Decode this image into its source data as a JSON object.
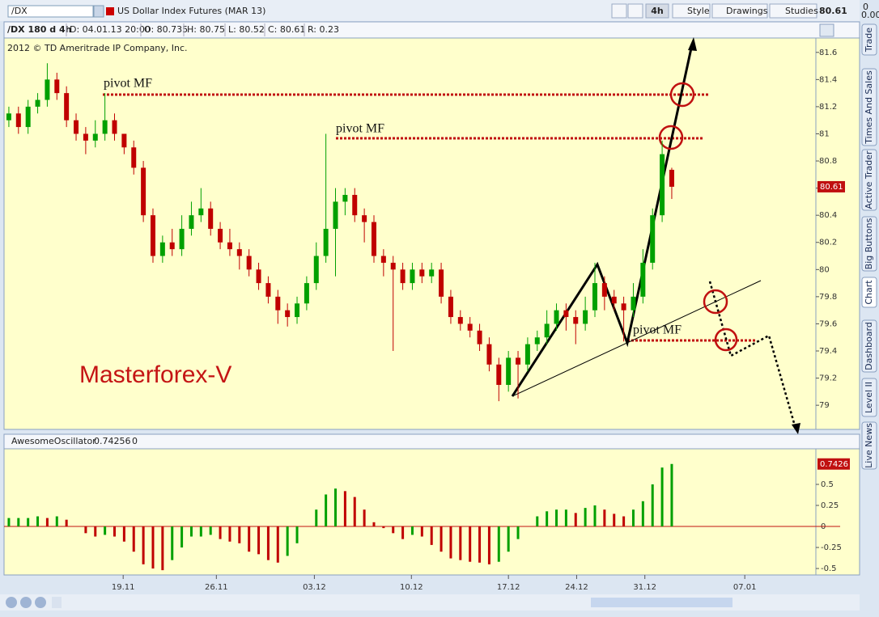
{
  "toolbar": {
    "symbol": "/DX",
    "description": "US Dollar Index Futures (MAR 13)",
    "timeframe": "4h",
    "buttons": [
      "Style",
      "Drawings",
      "Studies"
    ],
    "last": "80.61",
    "change": "0",
    "change_pct": "0.00%"
  },
  "info_bar": [
    "/DX 180 d 4h",
    "D: 04.01.13 20:00",
    "O: 80.735",
    "H: 80.75",
    "L: 80.52",
    "C: 80.61",
    "R: 0.23"
  ],
  "copyright": "2012 © TD Ameritrade IP Company, Inc.",
  "side_tabs": [
    "Trade",
    "Times And Sales",
    "Active Trader",
    "Big Buttons",
    "Chart",
    "Dashboard",
    "Level II",
    "Live News"
  ],
  "chart_data": [
    {
      "type": "candlestick",
      "watermark": "Masterforex-V",
      "annotations": [
        "pivot MF",
        "pivot MF",
        "pivot MF"
      ],
      "last_price_label": "80.61",
      "up_color": "#00a000",
      "down_color": "#c00000",
      "candles": [
        [
          81.1,
          81.2,
          81.05,
          81.15
        ],
        [
          81.15,
          81.2,
          81.0,
          81.05
        ],
        [
          81.05,
          81.25,
          81.0,
          81.2
        ],
        [
          81.2,
          81.3,
          81.15,
          81.25
        ],
        [
          81.25,
          81.52,
          81.2,
          81.4
        ],
        [
          81.4,
          81.45,
          81.25,
          81.3
        ],
        [
          81.3,
          81.35,
          81.05,
          81.1
        ],
        [
          81.1,
          81.15,
          80.95,
          81.0
        ],
        [
          81.0,
          81.05,
          80.85,
          80.95
        ],
        [
          80.95,
          81.1,
          80.9,
          81.0
        ],
        [
          81.0,
          81.3,
          80.95,
          81.1
        ],
        [
          81.1,
          81.15,
          80.95,
          81.0
        ],
        [
          81.0,
          81.0,
          80.85,
          80.9
        ],
        [
          80.9,
          80.95,
          80.7,
          80.75
        ],
        [
          80.75,
          80.8,
          80.35,
          80.4
        ],
        [
          80.4,
          80.45,
          80.05,
          80.1
        ],
        [
          80.1,
          80.25,
          80.05,
          80.2
        ],
        [
          80.2,
          80.3,
          80.1,
          80.15
        ],
        [
          80.15,
          80.4,
          80.1,
          80.3
        ],
        [
          80.3,
          80.5,
          80.25,
          80.4
        ],
        [
          80.4,
          80.6,
          80.35,
          80.45
        ],
        [
          80.45,
          80.5,
          80.25,
          80.3
        ],
        [
          80.3,
          80.35,
          80.15,
          80.2
        ],
        [
          80.2,
          80.3,
          80.1,
          80.15
        ],
        [
          80.15,
          80.2,
          80.0,
          80.1
        ],
        [
          80.1,
          80.15,
          79.95,
          80.0
        ],
        [
          80.0,
          80.05,
          79.85,
          79.9
        ],
        [
          79.9,
          79.95,
          79.75,
          79.8
        ],
        [
          79.8,
          79.85,
          79.6,
          79.7
        ],
        [
          79.7,
          79.75,
          79.58,
          79.65
        ],
        [
          79.65,
          79.8,
          79.6,
          79.75
        ],
        [
          79.75,
          79.95,
          79.7,
          79.9
        ],
        [
          79.9,
          80.2,
          79.85,
          80.1
        ],
        [
          80.1,
          81.0,
          80.05,
          80.3
        ],
        [
          80.3,
          80.6,
          79.95,
          80.5
        ],
        [
          80.5,
          80.6,
          80.4,
          80.55
        ],
        [
          80.55,
          80.6,
          80.35,
          80.4
        ],
        [
          80.4,
          80.45,
          80.2,
          80.35
        ],
        [
          80.35,
          80.4,
          80.05,
          80.1
        ],
        [
          80.1,
          80.15,
          79.95,
          80.05
        ],
        [
          80.05,
          80.1,
          79.4,
          80.0
        ],
        [
          80.0,
          80.05,
          79.85,
          79.9
        ],
        [
          79.9,
          80.05,
          79.85,
          80.0
        ],
        [
          80.0,
          80.05,
          79.9,
          79.95
        ],
        [
          79.95,
          80.05,
          79.9,
          80.0
        ],
        [
          80.0,
          80.05,
          79.75,
          79.8
        ],
        [
          79.8,
          79.85,
          79.6,
          79.65
        ],
        [
          79.65,
          79.7,
          79.55,
          79.6
        ],
        [
          79.6,
          79.65,
          79.5,
          79.55
        ],
        [
          79.55,
          79.6,
          79.4,
          79.45
        ],
        [
          79.45,
          79.5,
          79.25,
          79.3
        ],
        [
          79.3,
          79.35,
          79.03,
          79.15
        ],
        [
          79.15,
          79.4,
          79.1,
          79.35
        ],
        [
          79.35,
          79.4,
          79.05,
          79.3
        ],
        [
          79.3,
          79.5,
          79.25,
          79.45
        ],
        [
          79.45,
          79.55,
          79.4,
          79.5
        ],
        [
          79.5,
          79.7,
          79.45,
          79.6
        ],
        [
          79.6,
          79.75,
          79.55,
          79.7
        ],
        [
          79.7,
          79.75,
          79.55,
          79.65
        ],
        [
          79.65,
          79.7,
          79.45,
          79.6
        ],
        [
          79.6,
          79.8,
          79.55,
          79.7
        ],
        [
          79.7,
          80.05,
          79.65,
          79.9
        ],
        [
          79.9,
          79.95,
          79.7,
          79.8
        ],
        [
          79.8,
          79.85,
          79.7,
          79.75
        ],
        [
          79.75,
          79.8,
          79.47,
          79.7
        ],
        [
          79.7,
          79.9,
          79.65,
          79.8
        ],
        [
          79.8,
          80.15,
          79.75,
          80.05
        ],
        [
          80.05,
          80.45,
          80.0,
          80.4
        ],
        [
          80.4,
          80.95,
          80.35,
          80.85
        ],
        [
          80.735,
          80.75,
          80.52,
          80.61
        ]
      ],
      "xlim": [
        -0.5,
        84
      ],
      "xticks": [
        {
          "value": 11.9,
          "label": "19.11"
        },
        {
          "value": 21.6,
          "label": "26.11"
        },
        {
          "value": 31.8,
          "label": "03.12"
        },
        {
          "value": 41.9,
          "label": "10.12"
        },
        {
          "value": 52,
          "label": "17.12"
        },
        {
          "value": 59.1,
          "label": "24.12"
        },
        {
          "value": 66.2,
          "label": "31.12"
        },
        {
          "value": 76.6,
          "label": "07.01"
        }
      ],
      "ylim": [
        78.84,
        81.7
      ],
      "yticks": [
        79,
        79.2,
        79.4,
        79.6,
        79.8,
        80,
        80.2,
        80.4,
        80.6,
        80.8,
        81,
        81.2,
        81.4,
        81.6
      ]
    },
    {
      "type": "histogram",
      "name": "AwesomeOscillator",
      "value_label": "0.74256",
      "param": "0",
      "last_label": "0.7426",
      "up_color": "#00a000",
      "down_color": "#c00000",
      "values": [
        0.1,
        0.1,
        0.1,
        0.12,
        0.1,
        0.12,
        0.08,
        0.0,
        -0.08,
        -0.12,
        -0.1,
        -0.12,
        -0.18,
        -0.3,
        -0.45,
        -0.5,
        -0.52,
        -0.4,
        -0.25,
        -0.12,
        -0.12,
        -0.1,
        -0.15,
        -0.18,
        -0.2,
        -0.3,
        -0.33,
        -0.4,
        -0.43,
        -0.35,
        -0.2,
        0.0,
        0.2,
        0.38,
        0.45,
        0.42,
        0.35,
        0.2,
        0.05,
        -0.02,
        -0.08,
        -0.15,
        -0.1,
        -0.12,
        -0.22,
        -0.3,
        -0.38,
        -0.4,
        -0.42,
        -0.43,
        -0.45,
        -0.42,
        -0.3,
        -0.15,
        0.0,
        0.12,
        0.18,
        0.2,
        0.2,
        0.16,
        0.22,
        0.25,
        0.2,
        0.15,
        0.12,
        0.2,
        0.3,
        0.5,
        0.7,
        0.74256
      ],
      "xlim": [
        -0.5,
        84
      ],
      "ylim": [
        -0.567,
        0.894
      ],
      "yticks": [
        0.5,
        0.25,
        0,
        -0.25,
        -0.5
      ]
    }
  ]
}
